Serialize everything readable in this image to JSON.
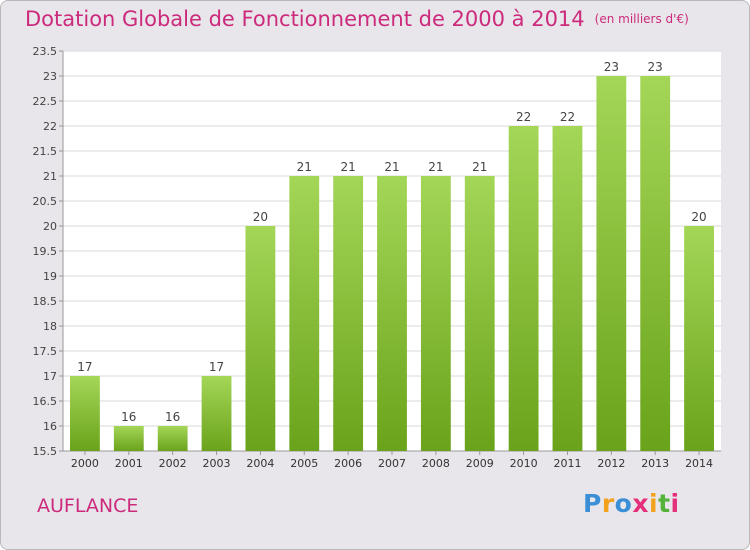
{
  "header": {
    "title": "Dotation Globale de Fonctionnement de 2000 à 2014",
    "unit": "(en milliers d'€)"
  },
  "place_name": "AUFLANCE",
  "logo": {
    "letters": [
      "P",
      "r",
      "o",
      "x",
      "i",
      "t",
      "i"
    ],
    "colors": [
      "#3b8fd6",
      "#f3a21e",
      "#3b8fd6",
      "#e4307a",
      "#f3a21e",
      "#55b23a",
      "#e4307a"
    ]
  },
  "colors": {
    "accent": "#cc2a7c",
    "bar_top": "#a4d657",
    "bar_bottom": "#6aa31b",
    "plot_background": "#ffffff",
    "grid": "#d9d9d9"
  },
  "chart_data": {
    "type": "bar",
    "title": "Dotation Globale de Fonctionnement de 2000 à 2014",
    "subtitle": "(en milliers d'€)",
    "categories": [
      "2000",
      "2001",
      "2002",
      "2003",
      "2004",
      "2005",
      "2006",
      "2007",
      "2008",
      "2009",
      "2010",
      "2011",
      "2012",
      "2013",
      "2014"
    ],
    "values": [
      17,
      16,
      16,
      17,
      20,
      21,
      21,
      21,
      21,
      21,
      22,
      22,
      23,
      23,
      20
    ],
    "data_labels": [
      "17",
      "16",
      "16",
      "17",
      "20",
      "21",
      "21",
      "21",
      "21",
      "21",
      "22",
      "22",
      "23",
      "23",
      "20"
    ],
    "yticks": [
      "15.5",
      "16",
      "16.5",
      "17",
      "17.5",
      "18",
      "18.5",
      "19",
      "19.5",
      "20",
      "20.5",
      "21",
      "21.5",
      "22",
      "22.5",
      "23",
      "23.5"
    ],
    "ylim": [
      15.5,
      23.5
    ],
    "xlabel": "",
    "ylabel": "",
    "grid": true,
    "legend": "none"
  }
}
